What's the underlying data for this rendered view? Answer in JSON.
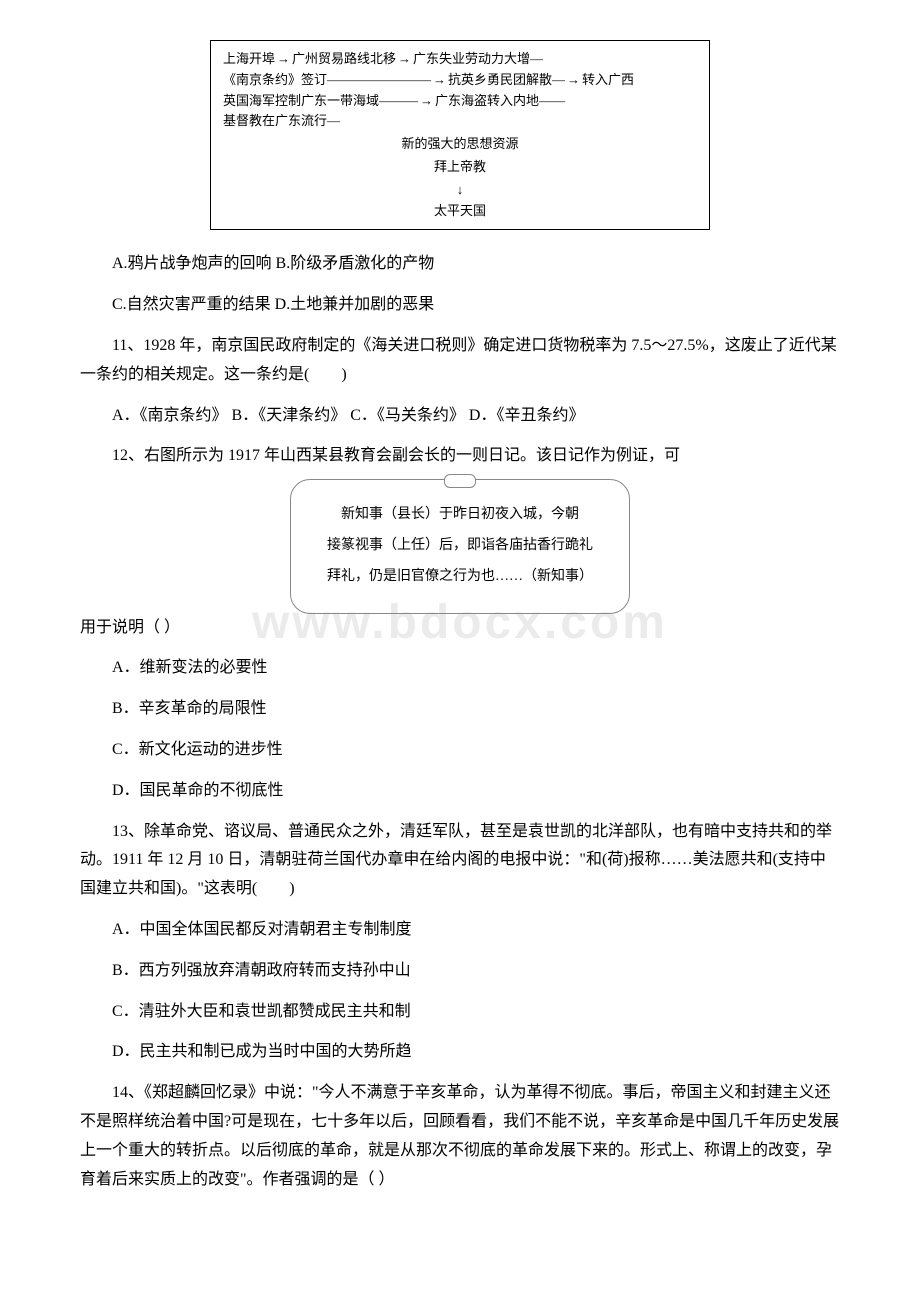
{
  "watermark": "www.bdocx.com",
  "diagram": {
    "row1_a": "上海开埠",
    "row1_b": "广州贸易路线北移",
    "row1_c": "广东失业劳动力大增",
    "row2_a": "《南京条约》签订",
    "row2_b": "抗英乡勇民团解散",
    "row2_c": "转入广西",
    "row3_a": "英国海军控制广东一带海域",
    "row3_b": "广东海盗转入内地",
    "row4_a": "基督教在广东流行",
    "row5": "新的强大的思想资源",
    "row6": "拜上帝教",
    "row7": "太平天国"
  },
  "q10": {
    "optA": "A.鸦片战争炮声的回响 B.阶级矛盾激化的产物",
    "optB": "C.自然灾害严重的结果 D.土地兼并加剧的恶果"
  },
  "q11": {
    "text": "11、1928 年，南京国民政府制定的《海关进口税则》确定进口货物税率为 7.5～27.5%，这废止了近代某一条约的相关规定。这一条约是(　　)",
    "opts": "A．《南京条约》 B．《天津条约》 C．《马关条约》 D．《辛丑条约》"
  },
  "q12": {
    "text_before": "12、右图所示为 1917 年山西某县教育会副会长的一则日记。该日记作为例证，可",
    "text_after": "用于说明（ ）",
    "diary_line1": "新知事（县长）于昨日初夜入城，今朝",
    "diary_line2": "接篆视事（上任）后，即诣各庙拈香行跪礼",
    "diary_line3": "拜礼，仍是旧官僚之行为也……（新知事）",
    "optA": "A．维新变法的必要性",
    "optB": "B．辛亥革命的局限性",
    "optC": "C．新文化运动的进步性",
    "optD": "D．国民革命的不彻底性"
  },
  "q13": {
    "text": "13、除革命党、谘议局、普通民众之外，清廷军队，甚至是袁世凯的北洋部队，也有暗中支持共和的举动。1911 年 12 月 10 日，清朝驻荷兰国代办章申在给内阁的电报中说：\"和(荷)报称……美法愿共和(支持中国建立共和国)。\"这表明(　　)",
    "optA": "A．中国全体国民都反对清朝君主专制制度",
    "optB": "B．西方列强放弃清朝政府转而支持孙中山",
    "optC": "C．清驻外大臣和袁世凯都赞成民主共和制",
    "optD": "D．民主共和制已成为当时中国的大势所趋"
  },
  "q14": {
    "text": "14、《郑超麟回忆录》中说：\"今人不满意于辛亥革命，认为革得不彻底。事后，帝国主义和封建主义还不是照样统治着中国?可是现在，七十多年以后，回顾看看，我们不能不说，辛亥革命是中国几千年历史发展上一个重大的转折点。以后彻底的革命，就是从那次不彻底的革命发展下来的。形式上、称谓上的改变，孕育着后来实质上的改变\"。作者强调的是（ ）"
  }
}
